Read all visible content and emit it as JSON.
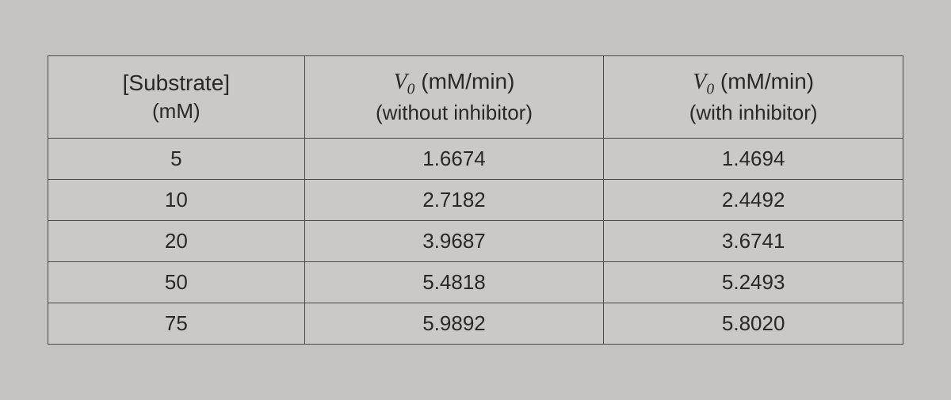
{
  "table": {
    "type": "table",
    "background_color": "#cbc9c7",
    "page_background": "#c5c3c2",
    "border_color": "#4a4846",
    "text_color": "#2a2826",
    "header_fontsize": 28,
    "cell_fontsize": 26,
    "columns": [
      {
        "line1": "[Substrate]",
        "line2": "(mM)",
        "width_pct": 30,
        "align": "center"
      },
      {
        "line1_v0": true,
        "line1_after": "(mM/min)",
        "line2": "(without inhibitor)",
        "width_pct": 35,
        "align": "center"
      },
      {
        "line1_v0": true,
        "line1_after": "(mM/min)",
        "line2": "(with inhibitor)",
        "width_pct": 35,
        "align": "center"
      }
    ],
    "rows": [
      {
        "s": "5",
        "a": "1.6674",
        "b": "1.4694"
      },
      {
        "s": "10",
        "a": "2.7182",
        "b": "2.4492"
      },
      {
        "s": "20",
        "a": "3.9687",
        "b": "3.6741"
      },
      {
        "s": "50",
        "a": "5.4818",
        "b": "5.2493"
      },
      {
        "s": "75",
        "a": "5.9892",
        "b": "5.8020"
      }
    ],
    "v0_label": {
      "base": "V",
      "sub": "0"
    }
  }
}
